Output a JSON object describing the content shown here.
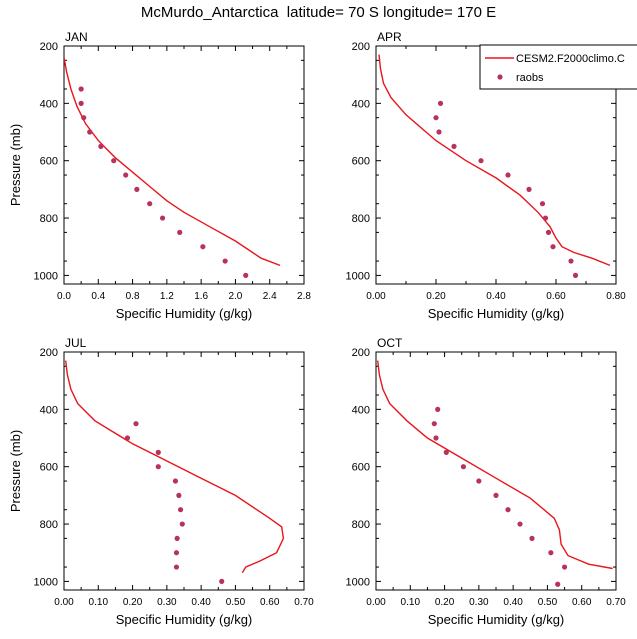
{
  "figure": {
    "title": "McMurdo_Antarctica  latitude= 70 S longitude= 170 E"
  },
  "colors": {
    "model_line": "#e8151b",
    "obs_marker": "#b8325e",
    "axis": "#000000"
  },
  "legend": {
    "placement": "top-right (APR panel)",
    "entries": [
      {
        "label": "CESM2.F2000climo.C",
        "style": "line"
      },
      {
        "label": "raobs",
        "style": "marker"
      }
    ]
  },
  "chart_data": [
    {
      "type": "line",
      "panel_label": "JAN",
      "xlabel": "Specific Humidity (g/kg)",
      "ylabel": "Pressure (mb)",
      "xlim": [
        0,
        2.8
      ],
      "ylim": [
        200,
        1030
      ],
      "y_reversed": true,
      "xticks": [
        "0.0",
        "0.4",
        "0.8",
        "1.2",
        "1.6",
        "2.0",
        "2.4",
        "2.8"
      ],
      "yticks": [
        "200",
        "400",
        "600",
        "800",
        "1000"
      ],
      "series": [
        {
          "name": "CESM2.F2000climo.C",
          "kind": "line",
          "x": [
            0.0,
            0.03,
            0.08,
            0.15,
            0.25,
            0.4,
            0.6,
            0.8,
            1.0,
            1.2,
            1.4,
            1.7,
            2.0,
            2.3,
            2.52
          ],
          "y": [
            240,
            290,
            350,
            410,
            470,
            530,
            590,
            640,
            690,
            740,
            780,
            830,
            880,
            940,
            965
          ]
        },
        {
          "name": "raobs",
          "kind": "scatter",
          "x": [
            0.2,
            0.2,
            0.23,
            0.3,
            0.43,
            0.58,
            0.72,
            0.85,
            1.0,
            1.15,
            1.35,
            1.62,
            1.88,
            2.12
          ],
          "y": [
            350,
            400,
            450,
            500,
            550,
            600,
            650,
            700,
            750,
            800,
            850,
            900,
            950,
            1000
          ]
        }
      ]
    },
    {
      "type": "line",
      "panel_label": "APR",
      "xlabel": "Specific Humidity (g/kg)",
      "ylabel": "",
      "xlim": [
        0,
        0.8
      ],
      "ylim": [
        200,
        1030
      ],
      "y_reversed": true,
      "xticks": [
        "0.00",
        "0.20",
        "0.40",
        "0.60",
        "0.80"
      ],
      "yticks": [
        "200",
        "400",
        "600",
        "800",
        "1000"
      ],
      "series": [
        {
          "name": "CESM2.F2000climo.C",
          "kind": "line",
          "x": [
            0.01,
            0.015,
            0.025,
            0.05,
            0.1,
            0.2,
            0.3,
            0.4,
            0.48,
            0.54,
            0.58,
            0.6,
            0.62,
            0.66,
            0.72,
            0.78
          ],
          "y": [
            230,
            280,
            330,
            380,
            440,
            530,
            600,
            660,
            720,
            780,
            830,
            870,
            900,
            920,
            940,
            965
          ]
        },
        {
          "name": "raobs",
          "kind": "scatter",
          "x": [
            0.215,
            0.2,
            0.21,
            0.26,
            0.35,
            0.44,
            0.51,
            0.555,
            0.565,
            0.575,
            0.59,
            0.65,
            0.665
          ],
          "y": [
            400,
            450,
            500,
            550,
            600,
            650,
            700,
            750,
            800,
            850,
            900,
            950,
            1000
          ]
        }
      ]
    },
    {
      "type": "line",
      "panel_label": "JUL",
      "xlabel": "Specific Humidity (g/kg)",
      "ylabel": "Pressure (mb)",
      "xlim": [
        0,
        0.7
      ],
      "ylim": [
        200,
        1030
      ],
      "y_reversed": true,
      "xticks": [
        "0.00",
        "0.10",
        "0.20",
        "0.30",
        "0.40",
        "0.50",
        "0.60",
        "0.70"
      ],
      "yticks": [
        "200",
        "400",
        "600",
        "800",
        "1000"
      ],
      "series": [
        {
          "name": "CESM2.F2000climo.C",
          "kind": "line",
          "x": [
            0.005,
            0.01,
            0.02,
            0.04,
            0.09,
            0.2,
            0.3,
            0.4,
            0.5,
            0.6,
            0.635,
            0.64,
            0.62,
            0.57,
            0.53,
            0.52
          ],
          "y": [
            230,
            280,
            330,
            380,
            440,
            520,
            580,
            640,
            700,
            780,
            810,
            850,
            900,
            930,
            950,
            970
          ]
        },
        {
          "name": "raobs",
          "kind": "scatter",
          "x": [
            0.21,
            0.185,
            0.275,
            0.275,
            0.325,
            0.335,
            0.34,
            0.345,
            0.33,
            0.328,
            0.328,
            0.46
          ],
          "y": [
            450,
            500,
            550,
            600,
            650,
            700,
            750,
            800,
            850,
            900,
            950,
            1000
          ]
        }
      ]
    },
    {
      "type": "line",
      "panel_label": "OCT",
      "xlabel": "Specific Humidity (g/kg)",
      "ylabel": "",
      "xlim": [
        0,
        0.7
      ],
      "ylim": [
        200,
        1030
      ],
      "y_reversed": true,
      "xticks": [
        "0.00",
        "0.10",
        "0.20",
        "0.30",
        "0.40",
        "0.50",
        "0.60",
        "0.70"
      ],
      "yticks": [
        "200",
        "400",
        "600",
        "800",
        "1000"
      ],
      "series": [
        {
          "name": "CESM2.F2000climo.C",
          "kind": "line",
          "x": [
            0.005,
            0.01,
            0.02,
            0.04,
            0.09,
            0.15,
            0.25,
            0.35,
            0.45,
            0.52,
            0.535,
            0.54,
            0.56,
            0.62,
            0.69
          ],
          "y": [
            230,
            280,
            330,
            380,
            440,
            500,
            570,
            640,
            710,
            780,
            820,
            870,
            910,
            940,
            955
          ]
        },
        {
          "name": "raobs",
          "kind": "scatter",
          "x": [
            0.18,
            0.17,
            0.175,
            0.205,
            0.255,
            0.3,
            0.35,
            0.385,
            0.42,
            0.455,
            0.51,
            0.55,
            0.53
          ],
          "y": [
            400,
            450,
            500,
            550,
            600,
            650,
            700,
            750,
            800,
            850,
            900,
            950,
            1010
          ]
        }
      ]
    }
  ]
}
